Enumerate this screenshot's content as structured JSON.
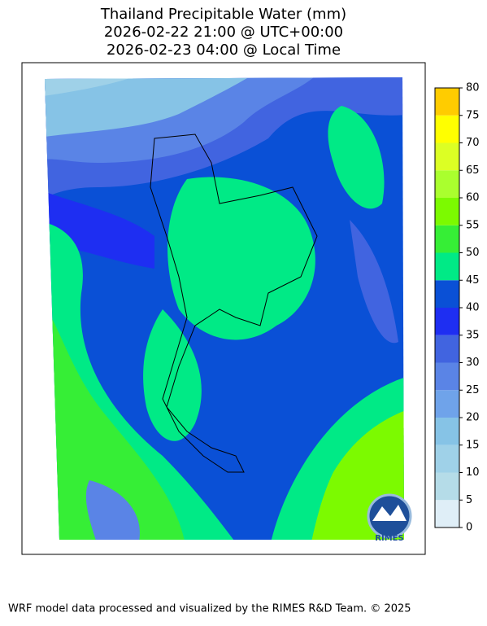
{
  "map": {
    "title": [
      "Thailand Precipitable Water (mm)",
      "2026-02-22 21:00 @ UTC+00:00",
      "2026-02-23 04:00 @ Local Time"
    ],
    "colorbar": {
      "levels": [
        0,
        5,
        10,
        15,
        20,
        25,
        30,
        35,
        40,
        45,
        50,
        55,
        60,
        65,
        70,
        75,
        80
      ],
      "colors": [
        "#dfeef7",
        "#b5dce8",
        "#9fd1e8",
        "#86c3e6",
        "#6fa3ea",
        "#5a84e6",
        "#4164e0",
        "#1e2ef2",
        "#0a50d6",
        "#00ea86",
        "#36ee36",
        "#7cfa00",
        "#aaff2e",
        "#dcff24",
        "#ffff00",
        "#ffcc00"
      ]
    },
    "logo": "RIMES",
    "footer": "WRF model data processed and visualized by the RIMES R&D Team. © 2025"
  }
}
